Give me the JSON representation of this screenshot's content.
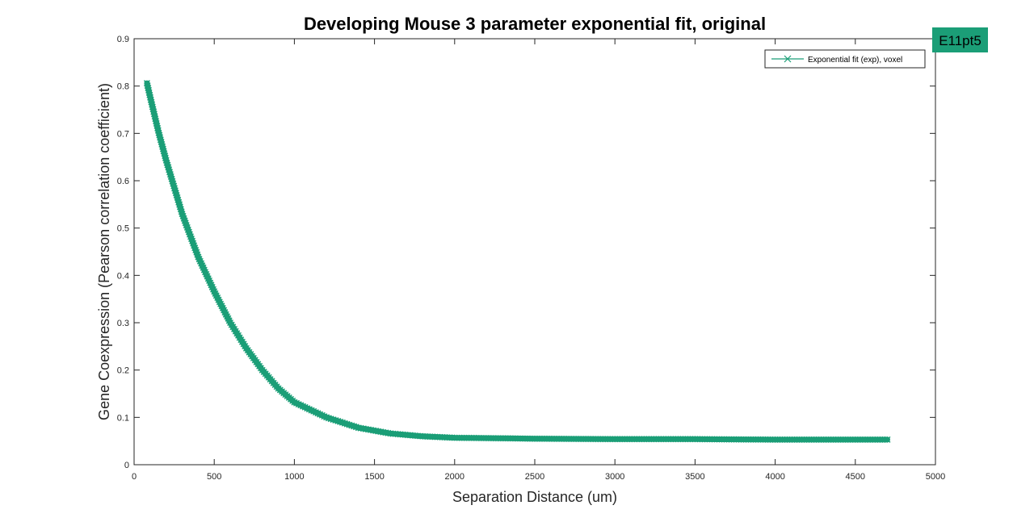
{
  "chart_data": {
    "type": "line",
    "title": "Developing Mouse 3 parameter exponential fit, original",
    "xlabel": "Separation Distance (um)",
    "ylabel": "Gene Coexpression (Pearson correlation coefficient)",
    "xlim": [
      0,
      5000
    ],
    "ylim": [
      0,
      0.9
    ],
    "xticks": [
      "0",
      "500",
      "1000",
      "1500",
      "2000",
      "2500",
      "3000",
      "3500",
      "4000",
      "4500",
      "5000"
    ],
    "yticks": [
      "0",
      "0.1",
      "0.2",
      "0.3",
      "0.4",
      "0.5",
      "0.6",
      "0.7",
      "0.8",
      "0.9"
    ],
    "grid": false,
    "legend_position": "top-right",
    "series": [
      {
        "name": "Exponential fit (exp), voxel",
        "color": "#1b9e77",
        "marker": "x",
        "x": [
          80,
          150,
          200,
          300,
          400,
          500,
          600,
          700,
          800,
          900,
          1000,
          1200,
          1400,
          1600,
          1800,
          2000,
          2500,
          3000,
          3500,
          4000,
          4500,
          4700
        ],
        "y": [
          0.806,
          0.706,
          0.643,
          0.53,
          0.439,
          0.366,
          0.3,
          0.246,
          0.2,
          0.161,
          0.132,
          0.1,
          0.078,
          0.066,
          0.06,
          0.057,
          0.055,
          0.054,
          0.054,
          0.053,
          0.053,
          0.053
        ]
      }
    ]
  },
  "tag": {
    "label": "E11pt5",
    "color": "#1b9e77"
  }
}
